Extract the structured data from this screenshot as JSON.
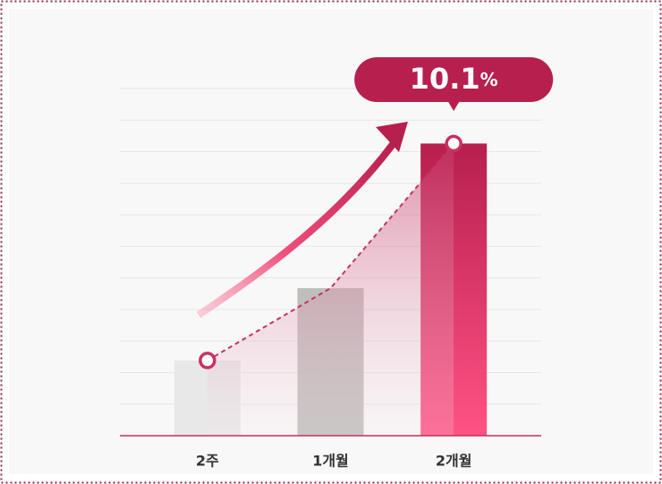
{
  "chart_data": {
    "type": "bar",
    "categories": [
      "2주",
      "1개월",
      "2개월"
    ],
    "values": [
      2.6,
      5.1,
      10.1
    ],
    "value_labels": [
      null,
      null,
      "10.1%"
    ],
    "colors": [
      "#e8e8e8",
      "#c0bebd",
      "#c52a58"
    ],
    "ylim": [
      0,
      12
    ]
  }
}
